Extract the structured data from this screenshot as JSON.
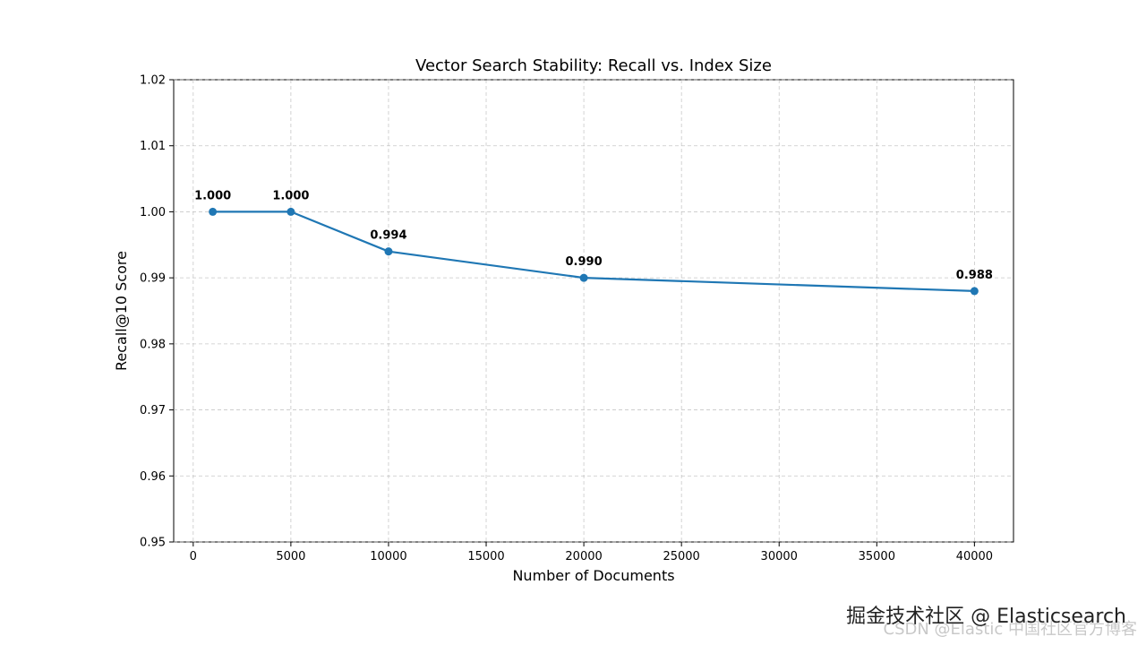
{
  "chart_data": {
    "type": "line",
    "title": "Vector Search Stability: Recall vs. Index Size",
    "xlabel": "Number of Documents",
    "ylabel": "Recall@10 Score",
    "xlim": [
      -1000,
      42000
    ],
    "ylim": [
      0.95,
      1.02
    ],
    "x_ticks": [
      0,
      5000,
      10000,
      15000,
      20000,
      25000,
      30000,
      35000,
      40000
    ],
    "y_ticks": [
      "0.95",
      "0.96",
      "0.97",
      "0.98",
      "0.99",
      "1.00",
      "1.01",
      "1.02"
    ],
    "grid": true,
    "grid_style": "dashed",
    "line_color": "#1f77b4",
    "x": [
      1000,
      5000,
      10000,
      20000,
      40000
    ],
    "y": [
      1.0,
      1.0,
      0.994,
      0.99,
      0.988
    ],
    "data_labels": [
      "1.000",
      "1.000",
      "0.994",
      "0.990",
      "0.988"
    ]
  },
  "watermarks": {
    "primary": "掘金技术社区 @ Elasticsearch",
    "secondary": "CSDN @Elastic 中国社区官方博客"
  }
}
